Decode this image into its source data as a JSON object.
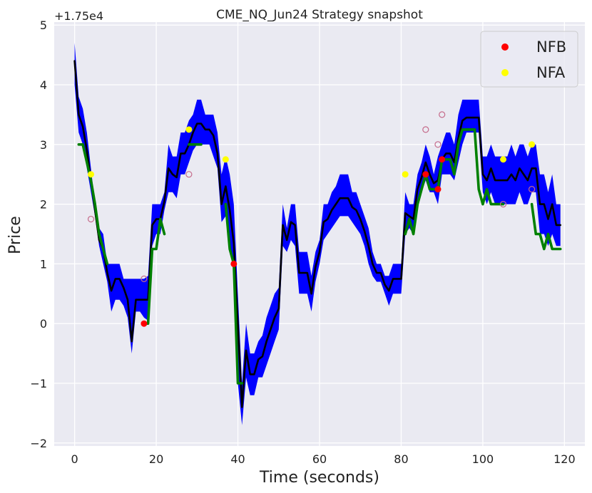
{
  "chart_data": {
    "type": "line",
    "title": "CME_NQ_Jun24 Strategy snapshot",
    "xlabel": "Time (seconds)",
    "ylabel": "Price",
    "y_offset_label": "+1.75e4",
    "xlim": [
      -5,
      125
    ],
    "ylim": [
      -2.05,
      5.05
    ],
    "xticks": [
      0,
      20,
      40,
      60,
      80,
      100,
      120
    ],
    "xtick_labels": [
      "0",
      "20",
      "40",
      "60",
      "80",
      "100",
      "120"
    ],
    "yticks": [
      -2,
      -1,
      0,
      1,
      2,
      3,
      4,
      5
    ],
    "ytick_labels": [
      "−2",
      "−1",
      "0",
      "1",
      "2",
      "3",
      "4",
      "5"
    ],
    "grid": true,
    "legend_position": "top-right",
    "background_color": "#eaeaf2",
    "band": {
      "color": "#0000ff",
      "x": [
        0,
        1,
        2,
        3,
        4,
        5,
        6,
        7,
        8,
        9,
        10,
        11,
        12,
        13,
        14,
        15,
        16,
        17,
        18,
        19,
        20,
        21,
        22,
        23,
        24,
        25,
        26,
        27,
        28,
        29,
        30,
        31,
        32,
        33,
        34,
        35,
        36,
        37,
        38,
        39,
        40,
        41,
        42,
        43,
        44,
        45,
        46,
        47,
        48,
        49,
        50,
        51,
        52,
        53,
        54,
        55,
        56,
        57,
        58,
        59,
        60,
        61,
        62,
        63,
        64,
        65,
        66,
        67,
        68,
        69,
        70,
        71,
        72,
        73,
        74,
        75,
        76,
        77,
        78,
        79,
        80,
        81,
        82,
        83,
        84,
        85,
        86,
        87,
        88,
        89,
        90,
        91,
        92,
        93,
        94,
        95,
        96,
        97,
        98,
        99,
        100,
        101,
        102,
        103,
        104,
        105,
        106,
        107,
        108,
        109,
        110,
        111,
        112,
        113,
        114,
        115,
        116,
        117,
        118,
        119
      ],
      "lower": [
        4.0,
        3.2,
        3.0,
        2.6,
        2.2,
        1.8,
        1.3,
        1.0,
        0.7,
        0.2,
        0.4,
        0.4,
        0.3,
        0.1,
        -0.5,
        0.2,
        0.2,
        0.1,
        0.05,
        1.3,
        1.5,
        1.5,
        1.9,
        2.2,
        2.2,
        2.1,
        2.5,
        2.5,
        2.7,
        2.9,
        3.0,
        3.0,
        3.0,
        3.0,
        2.8,
        2.6,
        1.7,
        1.8,
        1.3,
        0.9,
        -1.0,
        -1.7,
        -0.9,
        -1.2,
        -1.2,
        -0.9,
        -0.9,
        -0.7,
        -0.5,
        -0.3,
        -0.1,
        1.3,
        1.2,
        1.4,
        1.3,
        0.5,
        0.5,
        0.5,
        0.2,
        0.7,
        1.0,
        1.4,
        1.5,
        1.6,
        1.7,
        1.8,
        1.8,
        1.8,
        1.7,
        1.6,
        1.5,
        1.3,
        1.0,
        0.8,
        0.7,
        0.7,
        0.5,
        0.3,
        0.5,
        0.5,
        0.5,
        1.5,
        1.6,
        1.5,
        2.0,
        2.2,
        2.4,
        2.2,
        2.2,
        2.0,
        2.5,
        2.5,
        2.5,
        2.4,
        2.7,
        3.0,
        3.2,
        3.2,
        3.2,
        3.2,
        2.2,
        2.0,
        2.2,
        2.0,
        2.0,
        2.0,
        2.0,
        2.0,
        2.0,
        2.2,
        2.0,
        2.0,
        2.2,
        2.2,
        1.5,
        1.5,
        1.3,
        1.5,
        1.3,
        1.3
      ],
      "upper": [
        4.7,
        3.8,
        3.6,
        3.2,
        2.6,
        2.0,
        1.6,
        1.5,
        1.0,
        1.0,
        1.0,
        1.0,
        0.75,
        0.75,
        0.75,
        0.75,
        0.75,
        0.75,
        0.8,
        2.0,
        2.0,
        2.0,
        2.2,
        3.0,
        2.8,
        2.8,
        3.2,
        3.2,
        3.4,
        3.5,
        3.75,
        3.75,
        3.5,
        3.5,
        3.5,
        3.2,
        2.5,
        2.8,
        2.5,
        2.0,
        0.5,
        -1.0,
        0.0,
        -0.5,
        -0.5,
        -0.3,
        -0.2,
        0.1,
        0.3,
        0.5,
        0.6,
        2.0,
        1.6,
        2.0,
        2.0,
        1.2,
        1.2,
        1.2,
        0.8,
        1.2,
        1.4,
        2.0,
        2.0,
        2.2,
        2.3,
        2.5,
        2.5,
        2.5,
        2.2,
        2.2,
        2.0,
        1.8,
        1.6,
        1.2,
        1.0,
        1.0,
        0.8,
        0.8,
        1.0,
        1.0,
        1.0,
        2.2,
        2.0,
        2.0,
        2.5,
        2.7,
        3.0,
        2.8,
        2.5,
        2.8,
        3.0,
        3.2,
        3.2,
        3.0,
        3.5,
        3.75,
        3.75,
        3.75,
        3.75,
        3.75,
        2.8,
        2.8,
        3.0,
        2.8,
        2.8,
        2.8,
        2.8,
        3.0,
        2.8,
        3.0,
        3.0,
        2.8,
        3.0,
        3.0,
        2.5,
        2.5,
        2.2,
        2.5,
        2.0,
        2.0
      ]
    },
    "series": [
      {
        "color": "#000000",
        "x": [
          0,
          1,
          2,
          3,
          4,
          5,
          6,
          7,
          8,
          9,
          10,
          11,
          12,
          13,
          14,
          15,
          16,
          17,
          18,
          19,
          20,
          21,
          22,
          23,
          24,
          25,
          26,
          27,
          28,
          29,
          30,
          31,
          32,
          33,
          34,
          35,
          36,
          37,
          38,
          39,
          40,
          41,
          42,
          43,
          44,
          45,
          46,
          47,
          48,
          49,
          50,
          51,
          52,
          53,
          54,
          55,
          56,
          57,
          58,
          59,
          60,
          61,
          62,
          63,
          64,
          65,
          66,
          67,
          68,
          69,
          70,
          71,
          72,
          73,
          74,
          75,
          76,
          77,
          78,
          79,
          80,
          81,
          82,
          83,
          84,
          85,
          86,
          87,
          88,
          89,
          90,
          91,
          92,
          93,
          94,
          95,
          96,
          97,
          98,
          99,
          100,
          101,
          102,
          103,
          104,
          105,
          106,
          107,
          108,
          109,
          110,
          111,
          112,
          113,
          114,
          115,
          116,
          117,
          118,
          119
        ],
        "y": [
          4.4,
          3.5,
          3.3,
          2.9,
          2.4,
          1.9,
          1.4,
          1.25,
          0.85,
          0.55,
          0.75,
          0.75,
          0.6,
          0.4,
          -0.3,
          0.4,
          0.4,
          0.4,
          0.4,
          1.65,
          1.75,
          1.75,
          2.05,
          2.6,
          2.5,
          2.45,
          2.85,
          2.85,
          3.0,
          3.2,
          3.35,
          3.35,
          3.25,
          3.25,
          3.15,
          2.85,
          2.0,
          2.3,
          1.9,
          1.35,
          0.0,
          -1.4,
          -0.45,
          -0.85,
          -0.85,
          -0.6,
          -0.55,
          -0.3,
          -0.1,
          0.1,
          0.25,
          1.65,
          1.4,
          1.7,
          1.65,
          0.85,
          0.85,
          0.85,
          0.5,
          0.95,
          1.2,
          1.7,
          1.75,
          1.9,
          2.0,
          2.1,
          2.1,
          2.1,
          1.95,
          1.9,
          1.75,
          1.55,
          1.3,
          1.0,
          0.85,
          0.85,
          0.65,
          0.55,
          0.75,
          0.75,
          0.75,
          1.85,
          1.8,
          1.75,
          2.25,
          2.45,
          2.7,
          2.5,
          2.35,
          2.4,
          2.75,
          2.85,
          2.85,
          2.7,
          3.1,
          3.4,
          3.45,
          3.45,
          3.45,
          3.45,
          2.5,
          2.4,
          2.6,
          2.4,
          2.4,
          2.4,
          2.4,
          2.5,
          2.4,
          2.6,
          2.5,
          2.4,
          2.6,
          2.6,
          2.0,
          2.0,
          1.75,
          2.0,
          1.65,
          1.65
        ]
      },
      {
        "color": "#008000",
        "x": [
          1,
          2,
          3,
          4,
          5,
          6,
          7,
          8
        ],
        "y": [
          3.0,
          3.0,
          2.7,
          2.4,
          2.0,
          1.5,
          1.25,
          1.0
        ]
      },
      {
        "color": "#008000",
        "x": [
          17,
          18,
          19,
          20,
          21,
          22
        ],
        "y": [
          0.0,
          0.0,
          1.25,
          1.25,
          1.75,
          1.5
        ]
      },
      {
        "color": "#008000",
        "x": [
          28,
          29,
          30,
          31
        ],
        "y": [
          3.0,
          3.0,
          3.0,
          3.0
        ]
      },
      {
        "color": "#008000",
        "x": [
          37,
          38,
          39,
          40,
          41
        ],
        "y": [
          2.0,
          1.25,
          1.0,
          -1.0,
          -1.0
        ]
      },
      {
        "color": "#008000",
        "x": [
          81,
          82,
          83,
          84,
          85,
          86,
          87,
          88,
          89,
          90,
          91,
          92,
          93,
          94,
          95,
          96,
          97,
          98,
          99,
          100,
          101,
          102,
          103,
          104,
          105
        ],
        "y": [
          1.5,
          1.75,
          1.5,
          2.0,
          2.25,
          2.5,
          2.25,
          2.25,
          2.25,
          2.75,
          2.75,
          2.75,
          2.5,
          3.0,
          3.25,
          3.25,
          3.25,
          3.25,
          2.25,
          2.0,
          2.25,
          2.0,
          2.0,
          2.0,
          2.0
        ]
      },
      {
        "color": "#008000",
        "x": [
          112,
          113,
          114,
          115,
          116,
          117,
          118,
          119
        ],
        "y": [
          2.0,
          1.5,
          1.5,
          1.25,
          1.5,
          1.25,
          1.25,
          1.25
        ]
      }
    ],
    "scatter": [
      {
        "name": "NFB",
        "color": "#ff0000",
        "x": [
          17,
          39,
          86,
          89,
          90
        ],
        "y": [
          0.0,
          1.0,
          2.5,
          2.25,
          2.75
        ]
      },
      {
        "name": "NFA",
        "color": "#ffff00",
        "x": [
          4,
          28,
          37,
          81,
          105,
          112
        ],
        "y": [
          2.5,
          3.25,
          2.75,
          2.5,
          2.75,
          3.0
        ]
      }
    ],
    "hollow_markers": {
      "color": "#c56a8a",
      "x": [
        4,
        17,
        28,
        86,
        89,
        90,
        105,
        112
      ],
      "y": [
        1.75,
        0.75,
        2.5,
        3.25,
        3.0,
        3.5,
        2.0,
        2.25
      ]
    }
  }
}
